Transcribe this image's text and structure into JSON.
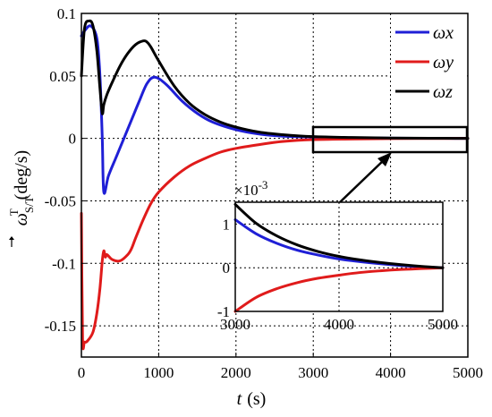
{
  "chart_data": {
    "type": "line",
    "xlabel": "t (s)",
    "xlabel_var": "t",
    "xlabel_unit": "(s)",
    "ylabel": "ω⃗S/TT(deg/s)",
    "ylabel_unit": "(deg/s)",
    "xlim": [
      0,
      5000
    ],
    "ylim": [
      -0.175,
      0.1
    ],
    "xticks": [
      0,
      1000,
      2000,
      3000,
      4000,
      5000
    ],
    "xtick_labels": [
      "0",
      "1000",
      "2000",
      "3000",
      "4000",
      "5000"
    ],
    "yticks": [
      0.1,
      0.05,
      0,
      -0.05,
      -0.1,
      -0.15
    ],
    "ytick_labels": [
      "0.1",
      "0.05",
      "0",
      "-0.05",
      "-0.1",
      "-0.15"
    ],
    "grid": true,
    "legend_position": "top-right",
    "series": [
      {
        "name": "ωx",
        "color": "#1f1fd6",
        "x": [
          0,
          40,
          120,
          200,
          240,
          270,
          290,
          350,
          450,
          550,
          650,
          750,
          850,
          950,
          1100,
          1300,
          1500,
          1700,
          2000,
          2300,
          2600,
          3000,
          3500,
          4000,
          4500,
          5000
        ],
        "y": [
          0.082,
          0.086,
          0.09,
          0.08,
          0.05,
          0.0,
          -0.043,
          -0.03,
          -0.015,
          0.0,
          0.015,
          0.03,
          0.044,
          0.049,
          0.043,
          0.03,
          0.02,
          0.013,
          0.007,
          0.0035,
          0.0018,
          0.0011,
          0.0005,
          0.0002,
          0.0001,
          0.0
        ]
      },
      {
        "name": "ωy",
        "color": "#e01b1b",
        "x": [
          0,
          15,
          40,
          80,
          150,
          200,
          240,
          270,
          290,
          310,
          330,
          400,
          500,
          600,
          650,
          700,
          800,
          900,
          1000,
          1200,
          1400,
          1600,
          1800,
          2000,
          2300,
          2600,
          3000,
          3500,
          4000,
          4500,
          5000
        ],
        "y": [
          -0.06,
          -0.16,
          -0.163,
          -0.162,
          -0.155,
          -0.14,
          -0.12,
          -0.098,
          -0.09,
          -0.095,
          -0.093,
          -0.097,
          -0.098,
          -0.093,
          -0.088,
          -0.08,
          -0.065,
          -0.052,
          -0.043,
          -0.031,
          -0.022,
          -0.016,
          -0.011,
          -0.008,
          -0.005,
          -0.0025,
          -0.001,
          -0.0005,
          -0.0002,
          -0.0001,
          0.0
        ]
      },
      {
        "name": "ωz",
        "color": "#000000",
        "x": [
          0,
          40,
          100,
          150,
          200,
          240,
          270,
          290,
          330,
          400,
          500,
          600,
          700,
          800,
          850,
          900,
          1000,
          1200,
          1400,
          1600,
          1800,
          2000,
          2300,
          2600,
          3000,
          3500,
          4000,
          4500,
          5000
        ],
        "y": [
          0.05,
          0.088,
          0.094,
          0.09,
          0.07,
          0.04,
          0.02,
          0.027,
          0.035,
          0.045,
          0.058,
          0.068,
          0.075,
          0.078,
          0.077,
          0.073,
          0.062,
          0.042,
          0.028,
          0.019,
          0.013,
          0.009,
          0.005,
          0.003,
          0.0014,
          0.0007,
          0.0003,
          0.0001,
          0.0
        ]
      }
    ],
    "zoom_box": {
      "x": [
        3000,
        5000
      ],
      "y": [
        -0.0095,
        0.0095
      ]
    },
    "inset": {
      "xlim": [
        3000,
        5000
      ],
      "ylim": [
        -1,
        1.5
      ],
      "xticks": [
        3000,
        4000,
        5000
      ],
      "xtick_labels": [
        "3000",
        "4000",
        "5000"
      ],
      "yticks": [
        1,
        0,
        -1
      ],
      "ytick_labels": [
        "1",
        "0",
        "-1"
      ],
      "scale_label": "×10",
      "scale_exp": "-3",
      "series": [
        {
          "name": "ωx",
          "color": "#1f1fd6",
          "x": [
            3000,
            3200,
            3400,
            3600,
            3800,
            4000,
            4200,
            4400,
            4600,
            4800,
            5000
          ],
          "y": [
            1.1,
            0.78,
            0.56,
            0.4,
            0.29,
            0.2,
            0.14,
            0.09,
            0.05,
            0.02,
            0.0
          ]
        },
        {
          "name": "ωy",
          "color": "#e01b1b",
          "x": [
            3000,
            3200,
            3400,
            3600,
            3800,
            4000,
            4200,
            4400,
            4600,
            4800,
            5000
          ],
          "y": [
            -1.0,
            -0.68,
            -0.48,
            -0.34,
            -0.24,
            -0.17,
            -0.11,
            -0.07,
            -0.04,
            -0.02,
            0.0
          ]
        },
        {
          "name": "ωz",
          "color": "#000000",
          "x": [
            3000,
            3200,
            3400,
            3600,
            3800,
            4000,
            4200,
            4400,
            4600,
            4800,
            5000
          ],
          "y": [
            1.45,
            1.02,
            0.73,
            0.52,
            0.37,
            0.26,
            0.18,
            0.12,
            0.07,
            0.03,
            0.0
          ]
        }
      ]
    }
  }
}
